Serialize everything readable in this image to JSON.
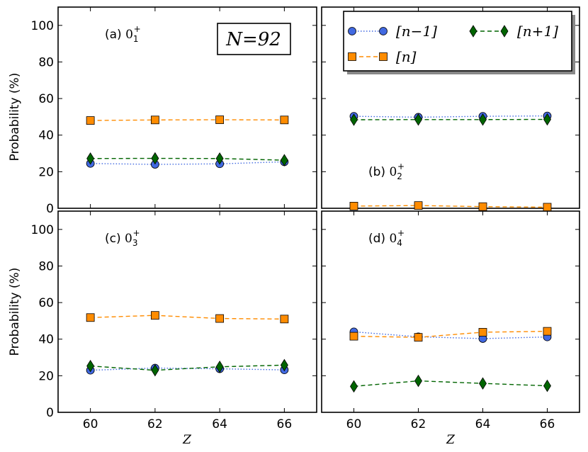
{
  "chart_data": {
    "type": "line",
    "ylabel": "Probability (%)",
    "xlabel": "Z",
    "x": [
      60,
      62,
      64,
      66
    ],
    "xlim": [
      59,
      67
    ],
    "ylim": [
      0,
      110
    ],
    "xticks": [
      "60",
      "62",
      "64",
      "66"
    ],
    "yticks": [
      "0",
      "20",
      "40",
      "60",
      "80",
      "100"
    ],
    "annotation": "N=92",
    "legend": [
      {
        "name": "[n−1]",
        "color": "#4169e1",
        "marker": "circle",
        "style": "dotted"
      },
      {
        "name": "[n]",
        "color": "#ff8c00",
        "marker": "square",
        "style": "dashed"
      },
      {
        "name": "[n+1]",
        "color": "#006400",
        "marker": "diamond",
        "style": "dashed"
      }
    ],
    "panels": [
      {
        "id": "a",
        "label_prefix": "(a)",
        "state": "0",
        "sub": "1",
        "sup": "+",
        "series": [
          {
            "name": "[n−1]",
            "values": [
              24.5,
              24.0,
              24.3,
              25.4
            ]
          },
          {
            "name": "[n]",
            "values": [
              48.0,
              48.3,
              48.4,
              48.3
            ]
          },
          {
            "name": "[n+1]",
            "values": [
              27.2,
              27.3,
              27.2,
              26.3
            ]
          }
        ]
      },
      {
        "id": "b",
        "label_prefix": "(b)",
        "state": "0",
        "sub": "2",
        "sup": "+",
        "series": [
          {
            "name": "[n−1]",
            "values": [
              50.3,
              49.8,
              50.3,
              50.5
            ]
          },
          {
            "name": "[n]",
            "values": [
              1.2,
              1.5,
              0.9,
              0.6
            ]
          },
          {
            "name": "[n+1]",
            "values": [
              48.4,
              48.5,
              48.5,
              48.6
            ]
          }
        ]
      },
      {
        "id": "c",
        "label_prefix": "(c)",
        "state": "0",
        "sub": "3",
        "sup": "+",
        "series": [
          {
            "name": "[n−1]",
            "values": [
              23.0,
              24.2,
              23.8,
              23.2
            ]
          },
          {
            "name": "[n]",
            "values": [
              51.8,
              53.0,
              51.3,
              51.0
            ]
          },
          {
            "name": "[n+1]",
            "values": [
              25.3,
              23.0,
              24.9,
              25.8
            ]
          }
        ]
      },
      {
        "id": "d",
        "label_prefix": "(d)",
        "state": "0",
        "sub": "4",
        "sup": "+",
        "series": [
          {
            "name": "[n−1]",
            "values": [
              44.0,
              41.3,
              40.3,
              41.2
            ]
          },
          {
            "name": "[n]",
            "values": [
              41.6,
              41.0,
              43.8,
              44.3
            ]
          },
          {
            "name": "[n+1]",
            "values": [
              14.2,
              17.2,
              15.8,
              14.5
            ]
          }
        ]
      }
    ]
  }
}
